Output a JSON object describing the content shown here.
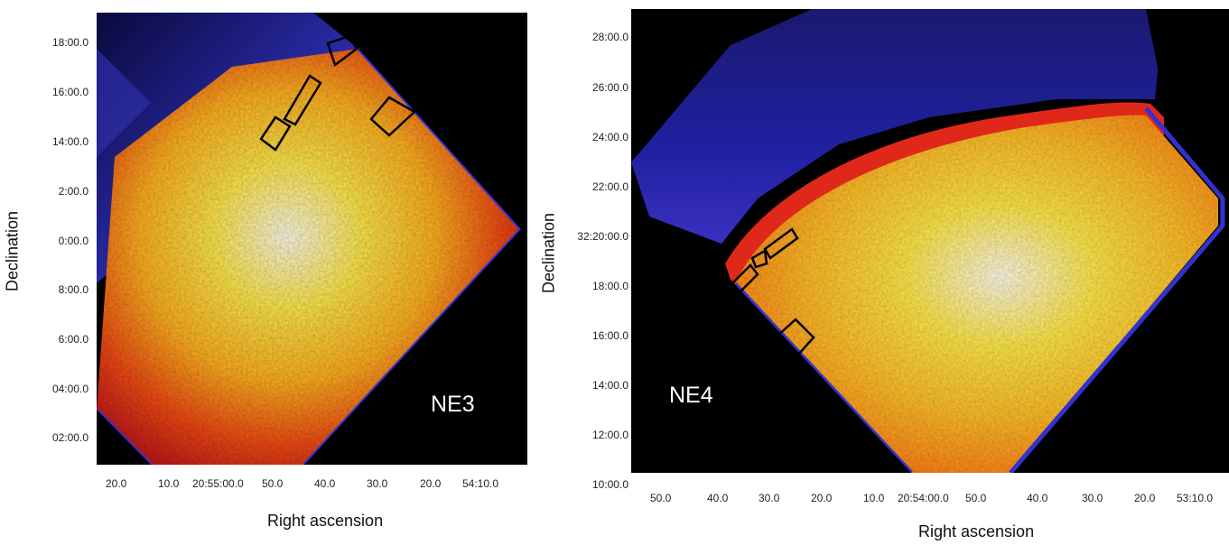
{
  "panels": [
    {
      "field_label": "NE3",
      "ylabel": "Declination",
      "xlabel": "Right ascension",
      "yticks": [
        "18:00.0",
        "16:00.0",
        "14:00.0",
        "2:00.0",
        "0:00.0",
        "8:00.0",
        "6:00.0",
        "04:00.0",
        "02:00.0"
      ],
      "xticks": [
        "20.0",
        "10.0",
        "20:55:00.0",
        "50.0",
        "40.0",
        "30.0",
        "20.0",
        "54:10.0"
      ]
    },
    {
      "field_label": "NE4",
      "ylabel": "Declination",
      "xlabel": "Right ascension",
      "yticks": [
        "28:00.0",
        "26:00.0",
        "24:00.0",
        "22:00.0",
        "32:20:00.0",
        "18:00.0",
        "16:00.0",
        "14:00.0",
        "12:00.0",
        "10:00.0"
      ],
      "xticks": [
        "50.0",
        "40.0",
        "30.0",
        "20.0",
        "10.0",
        "20:54:00.0",
        "50.0",
        "40.0",
        "30.0",
        "20.0",
        "53:10.0"
      ]
    }
  ],
  "colors": {
    "background": "#000000",
    "low": "#1a1aa8",
    "mid": "#e8231a",
    "high": "#ffffff",
    "annotation": "#000000",
    "field_label": "#ffffff"
  }
}
